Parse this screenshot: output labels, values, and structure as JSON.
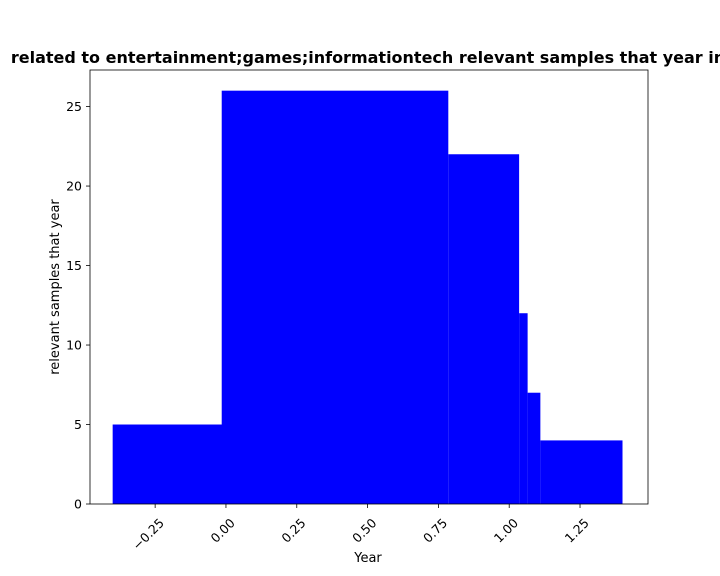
{
  "chart_data": {
    "type": "bar",
    "title": "related to entertainment;games;informationtech relevant samples that year in",
    "xlabel": "Year",
    "ylabel": "relevant samples that year",
    "xlim": [
      -0.48,
      1.49
    ],
    "ylim": [
      0,
      27.3
    ],
    "grid": false,
    "color": "#0000ff",
    "bars": [
      {
        "x_start": -0.4,
        "x_end": 0.0,
        "value": 5
      },
      {
        "x_start": -0.015,
        "x_end": 0.785,
        "value": 26
      },
      {
        "x_start": 0.785,
        "x_end": 1.035,
        "value": 22
      },
      {
        "x_start": 1.035,
        "x_end": 1.065,
        "value": 12
      },
      {
        "x_start": 1.065,
        "x_end": 1.11,
        "value": 7
      },
      {
        "x_start": 1.11,
        "x_end": 1.4,
        "value": 4
      }
    ],
    "xticks": [
      -0.25,
      0.0,
      0.25,
      0.5,
      0.75,
      1.0,
      1.25
    ],
    "xtick_labels": [
      "−0.25",
      "0.00",
      "0.25",
      "0.50",
      "0.75",
      "1.00",
      "1.25"
    ],
    "yticks": [
      0,
      5,
      10,
      15,
      20,
      25
    ],
    "ytick_labels": [
      "0",
      "5",
      "10",
      "15",
      "20",
      "25"
    ]
  }
}
